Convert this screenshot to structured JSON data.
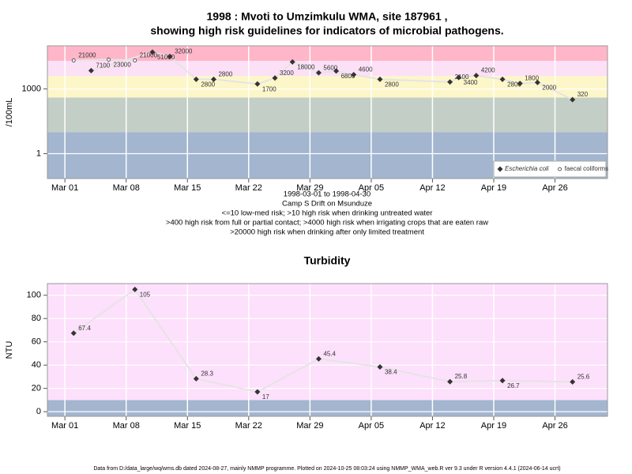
{
  "chart_data": [
    {
      "type": "line",
      "title": [
        "1998 : Mvoti to Umzimkulu WMA, site 187961 ,",
        "showing high risk guidelines for indicators of microbial pathogens."
      ],
      "notes": [
        "1998-03-01 to 1998-04-30",
        "Camp S Drift on Msunduze",
        "<=10 low-med risk; >10 high risk when drinking untreated water",
        ">400 high risk from full or partial contact; >4000 high risk when irrigating crops that are eaten raw",
        ">20000 high risk when drinking after only limited treatment"
      ],
      "y_label": "/100mL",
      "log_y": true,
      "xlim": [
        "1998-02-27",
        "1998-05-02"
      ],
      "xticks": [
        {
          "value": "1998-03-01",
          "label": "Mar 01"
        },
        {
          "value": "1998-03-08",
          "label": "Mar 08"
        },
        {
          "value": "1998-03-15",
          "label": "Mar 15"
        },
        {
          "value": "1998-03-22",
          "label": "Mar 22"
        },
        {
          "value": "1998-03-29",
          "label": "Mar 29"
        },
        {
          "value": "1998-04-05",
          "label": "Apr 05"
        },
        {
          "value": "1998-04-12",
          "label": "Apr 12"
        },
        {
          "value": "1998-04-19",
          "label": "Apr 19"
        },
        {
          "value": "1998-04-26",
          "label": "Apr 26"
        }
      ],
      "ylim": [
        0.07,
        100000
      ],
      "yticks": [
        1,
        1000
      ],
      "grid": true,
      "band_breaks": [
        10,
        400,
        4000,
        20000
      ],
      "band_colors": [
        "#a3b5cf",
        "#c3cec6",
        "#fdf6c9",
        "#fce0f6",
        "#ffb6c8"
      ],
      "legend": "lower right",
      "series": [
        {
          "name": "Escherichia coli",
          "marker": "diamond",
          "color": "#333333",
          "line_color": "#e4e4e4",
          "x": [
            "1998-03-04",
            "1998-03-11",
            "1998-03-13",
            "1998-03-16",
            "1998-03-18",
            "1998-03-23",
            "1998-03-25",
            "1998-03-27",
            "1998-03-30",
            "1998-04-01",
            "1998-04-03",
            "1998-04-06",
            "1998-04-14",
            "1998-04-15",
            "1998-04-17",
            "1998-04-20",
            "1998-04-22",
            "1998-04-24",
            "1998-04-28"
          ],
          "values": [
            7100,
            51000,
            32000,
            2800,
            2800,
            1700,
            3200,
            18000,
            5600,
            6800,
            4600,
            2800,
            2100,
            3400,
            4200,
            2800,
            1800,
            2000,
            320
          ]
        },
        {
          "name": "faecal coliforms",
          "marker": "circle",
          "color": "#333333",
          "line_color": "#e4e4e4",
          "x": [
            "1998-03-02",
            "1998-03-06",
            "1998-03-09"
          ],
          "values": [
            21000,
            23000,
            21000
          ]
        }
      ]
    },
    {
      "type": "line",
      "title": [
        "Turbidity"
      ],
      "y_label": "NTU",
      "log_y": false,
      "xlim": [
        "1998-02-27",
        "1998-05-02"
      ],
      "xticks": [
        {
          "value": "1998-03-01",
          "label": "Mar 01"
        },
        {
          "value": "1998-03-08",
          "label": "Mar 08"
        },
        {
          "value": "1998-03-15",
          "label": "Mar 15"
        },
        {
          "value": "1998-03-22",
          "label": "Mar 22"
        },
        {
          "value": "1998-03-29",
          "label": "Mar 29"
        },
        {
          "value": "1998-04-05",
          "label": "Apr 05"
        },
        {
          "value": "1998-04-12",
          "label": "Apr 12"
        },
        {
          "value": "1998-04-19",
          "label": "Apr 19"
        },
        {
          "value": "1998-04-26",
          "label": "Apr 26"
        }
      ],
      "ylim": [
        -4,
        110
      ],
      "yticks": [
        0,
        20,
        40,
        60,
        80,
        100
      ],
      "grid": true,
      "band_breaks": [
        10
      ],
      "band_colors": [
        "#a3b5cf",
        "#fde0fb"
      ],
      "series": [
        {
          "name": "Turbidity",
          "marker": "diamond",
          "color": "#333333",
          "line_color": "#e4e4e4",
          "x": [
            "1998-03-02",
            "1998-03-09",
            "1998-03-16",
            "1998-03-23",
            "1998-03-30",
            "1998-04-06",
            "1998-04-14",
            "1998-04-20",
            "1998-04-28"
          ],
          "values": [
            67.4,
            105,
            28.3,
            17,
            45.4,
            38.4,
            25.8,
            26.7,
            25.6
          ]
        }
      ]
    }
  ],
  "footer": "Data from D:/data_large/wq/wms.db dated 2024-08-27, mainly NMMP programme. Plotted on 2024-10-25 08:03:24 using NMMP_WMA_web.R ver 9.3 under R version 4.4.1 (2024-06-14 ucrt)"
}
